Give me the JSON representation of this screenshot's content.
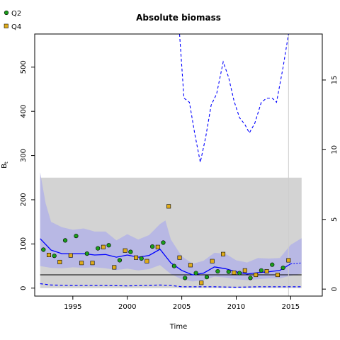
{
  "chart_data": {
    "type": "scatter",
    "title": "Absolute biomass",
    "xlabel": "Time",
    "ylabel": "B",
    "ylabel_sub": "t",
    "xlim": [
      1991.5,
      2017.9
    ],
    "ylim": [
      -18,
      575
    ],
    "xticks": [
      1995,
      2000,
      2005,
      2010,
      2015
    ],
    "yticks": [
      0,
      100,
      200,
      300,
      400,
      500
    ],
    "y2lim": [
      -0.5,
      18.3
    ],
    "y2ticks": [
      0,
      5,
      10,
      15
    ],
    "legend": {
      "placement": "top-left",
      "entries": [
        "Q2",
        "Q4"
      ]
    },
    "colors": {
      "q2": "#1a9f1a",
      "q4": "#e0ac1a",
      "estimate": "#0000ff",
      "ci_band": "#b3b3e6",
      "gray_region": "#d3d3d3",
      "ref_line": "#000000",
      "vline": "#cccccc"
    },
    "gray_region": {
      "x": [
        1992,
        2016
      ],
      "y": [
        0,
        250
      ]
    },
    "reference_line_y": 30,
    "vline_x": 2014.8,
    "series": [
      {
        "name": "Q2",
        "x": [
          1992.3,
          1993.3,
          1994.3,
          1995.3,
          1996.3,
          1997.3,
          1998.3,
          1999.3,
          2000.3,
          2001.3,
          2002.3,
          2003.3,
          2004.3,
          2005.3,
          2006.3,
          2007.3,
          2008.3,
          2009.3,
          2010.3,
          2011.3,
          2012.3,
          2013.3,
          2014.3
        ],
        "y": [
          87,
          73,
          108,
          118,
          78,
          90,
          97,
          63,
          82,
          67,
          94,
          103,
          50,
          23,
          34,
          25,
          38,
          37,
          34,
          23,
          40,
          53,
          46
        ]
      },
      {
        "name": "Q4",
        "x": [
          1992.8,
          1993.8,
          1994.8,
          1995.8,
          1996.8,
          1997.8,
          1998.8,
          1999.8,
          2000.8,
          2001.8,
          2002.8,
          2003.8,
          2004.8,
          2005.8,
          2006.8,
          2007.8,
          2008.8,
          2009.8,
          2010.8,
          2011.8,
          2012.8,
          2013.8,
          2014.8
        ],
        "y": [
          75,
          59,
          74,
          57,
          57,
          93,
          47,
          85,
          69,
          61,
          93,
          185,
          69,
          52,
          12,
          61,
          77,
          35,
          40,
          30,
          38,
          30,
          63
        ]
      },
      {
        "name": "",
        "kind": "estimate",
        "x": [
          1992,
          1993,
          1994,
          1995,
          1996,
          1997,
          1998,
          1999,
          2000,
          2001,
          2002,
          2003,
          2004,
          2005,
          2006,
          2007,
          2008,
          2009,
          2010,
          2011,
          2012,
          2013,
          2014,
          2015
        ],
        "y": [
          112,
          86,
          78,
          78,
          78,
          75,
          76,
          70,
          75,
          70,
          74,
          88,
          57,
          40,
          30,
          34,
          48,
          44,
          37,
          32,
          35,
          37,
          40,
          55
        ]
      },
      {
        "name": "",
        "kind": "estimate-forecast",
        "x": [
          2015,
          2016
        ],
        "y": [
          55,
          57
        ]
      },
      {
        "name": "",
        "kind": "ci-upper",
        "x": [
          1992,
          1992.5,
          1993,
          1994,
          1995,
          1996,
          1997,
          1998,
          1999,
          2000,
          2001,
          2002,
          2003,
          2003.5,
          2004,
          2005,
          2006,
          2007,
          2008,
          2009,
          2010,
          2011,
          2012,
          2013,
          2014,
          2015,
          2016
        ],
        "y": [
          262,
          192,
          150,
          138,
          132,
          135,
          128,
          128,
          108,
          122,
          110,
          120,
          145,
          153,
          110,
          72,
          55,
          62,
          80,
          78,
          63,
          58,
          68,
          67,
          68,
          98,
          113
        ]
      },
      {
        "name": "",
        "kind": "ci-lower",
        "x": [
          1992,
          1993,
          1994,
          1995,
          1996,
          1997,
          1998,
          1999,
          2000,
          2001,
          2002,
          2003,
          2004,
          2005,
          2006,
          2007,
          2008,
          2009,
          2010,
          2011,
          2012,
          2013,
          2014,
          2015,
          2016
        ],
        "y": [
          50,
          46,
          45,
          47,
          46,
          47,
          45,
          41,
          44,
          40,
          43,
          52,
          32,
          20,
          15,
          18,
          26,
          24,
          20,
          18,
          20,
          22,
          22,
          28,
          33
        ]
      },
      {
        "name": "",
        "kind": "lower-dashed",
        "x": [
          1992,
          1993,
          1995,
          1998,
          2000,
          2003,
          2004,
          2005,
          2006,
          2008,
          2010,
          2012,
          2014,
          2016
        ],
        "y": [
          10,
          7,
          6,
          6,
          5,
          7,
          6,
          3,
          3,
          3,
          2,
          3,
          3,
          3
        ]
      },
      {
        "name": "",
        "kind": "secondary-dashed",
        "axis": "y2",
        "x": [
          2004.8,
          2005.2,
          2005.7,
          2006.2,
          2006.7,
          2007.2,
          2007.7,
          2008.2,
          2008.8,
          2009.3,
          2009.8,
          2010.3,
          2010.8,
          2011.2,
          2011.7,
          2012.3,
          2012.8,
          2013.3,
          2013.7,
          2014.3,
          2014.8
        ],
        "y": [
          18.3,
          13.7,
          13.4,
          11.1,
          9.1,
          10.9,
          13.2,
          14.0,
          16.3,
          15.2,
          13.5,
          12.3,
          11.8,
          11.2,
          11.9,
          13.4,
          13.7,
          13.7,
          13.4,
          15.9,
          18.3
        ]
      }
    ]
  }
}
